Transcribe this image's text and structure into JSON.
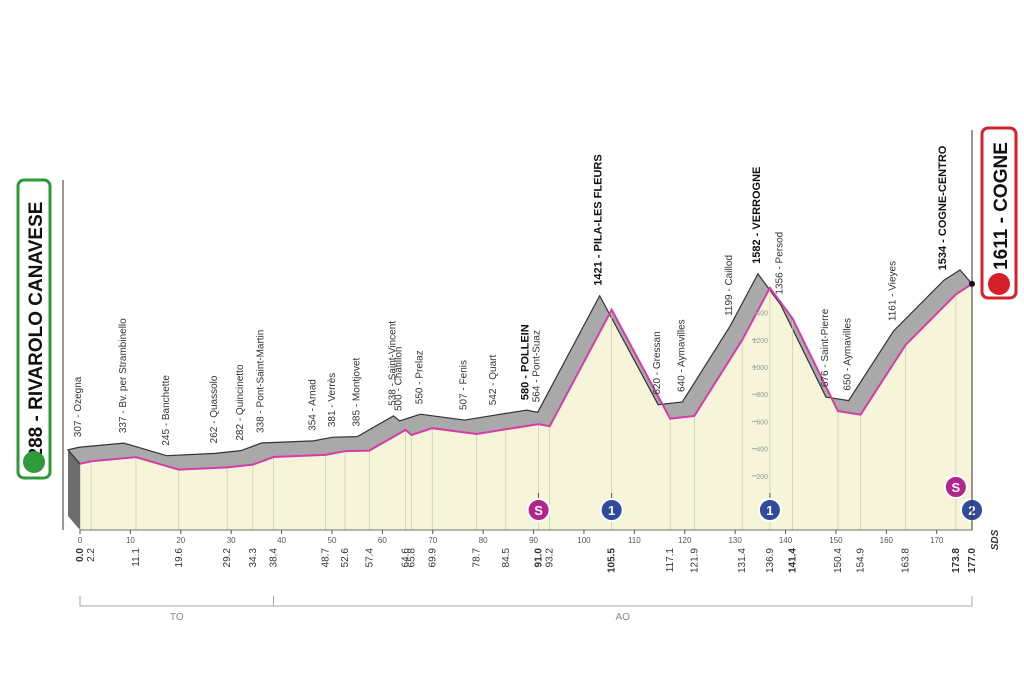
{
  "chart_data": {
    "type": "area",
    "start": {
      "label": "288 - RIVAROLO CANAVESE",
      "km": 0,
      "altitude": 288
    },
    "finish": {
      "label": "1611 - COGNE",
      "km": 177,
      "altitude": 1611
    },
    "waypoints": [
      {
        "label": "307 - Ozegna",
        "km": 2.2,
        "altitude": 307
      },
      {
        "label": "337 - Bv. per Strambinello",
        "km": 11.1,
        "altitude": 337
      },
      {
        "label": "245 - Banchette",
        "km": 19.6,
        "altitude": 245
      },
      {
        "label": "262 - Quassolo",
        "km": 29.2,
        "altitude": 262
      },
      {
        "label": "282 - Quincinetto",
        "km": 34.3,
        "altitude": 282
      },
      {
        "label": "338 - Pont-Saint-Martin",
        "km": 38.4,
        "altitude": 338
      },
      {
        "label": "354 - Arnad",
        "km": 48.7,
        "altitude": 354
      },
      {
        "label": "381 - Verrès",
        "km": 52.6,
        "altitude": 381
      },
      {
        "label": "385 - Montjovet",
        "km": 57.4,
        "altitude": 385
      },
      {
        "label": "538 - Saint-Vincent",
        "km": 64.6,
        "altitude": 538
      },
      {
        "label": "500 - Châtillon",
        "km": 65.8,
        "altitude": 500
      },
      {
        "label": "550 - Prelaz",
        "km": 69.9,
        "altitude": 550
      },
      {
        "label": "507 - Fenis",
        "km": 78.7,
        "altitude": 507
      },
      {
        "label": "542 - Quart",
        "km": 84.5,
        "altitude": 542
      },
      {
        "label": "580 - POLLEIN",
        "km": 91.0,
        "altitude": 580,
        "bold": true
      },
      {
        "label": "564 - Pont-Suaz",
        "km": 93.2,
        "altitude": 564
      },
      {
        "label": "1421 - PILA-LES FLEURS",
        "km": 105.5,
        "altitude": 1421,
        "bold": true
      },
      {
        "label": "620 - Gressan",
        "km": 117.1,
        "altitude": 620
      },
      {
        "label": "640 - Aymavilles",
        "km": 121.9,
        "altitude": 640
      },
      {
        "label": "1199 - Caillod",
        "km": 131.4,
        "altitude": 1199
      },
      {
        "label": "1582 - VERROGNE",
        "km": 136.9,
        "altitude": 1582,
        "bold": true
      },
      {
        "label": "1356 - Persod",
        "km": 141.4,
        "altitude": 1356
      },
      {
        "label": "676 - Saint-Pierre",
        "km": 150.4,
        "altitude": 676
      },
      {
        "label": "650 - Aymavilles",
        "km": 154.9,
        "altitude": 650
      },
      {
        "label": "1161 - Vieyes",
        "km": 163.8,
        "altitude": 1161
      },
      {
        "label": "1534 - COGNE-CENTRO",
        "km": 173.8,
        "altitude": 1534,
        "bold": true
      }
    ],
    "kmticks": [
      {
        "value": 0,
        "label": "0.0",
        "bold": true
      },
      {
        "value": 2.2,
        "label": "2.2"
      },
      {
        "value": 11.1,
        "label": "11.1"
      },
      {
        "value": 19.6,
        "label": "19.6"
      },
      {
        "value": 29.2,
        "label": "29.2"
      },
      {
        "value": 34.3,
        "label": "34.3"
      },
      {
        "value": 38.4,
        "label": "38.4"
      },
      {
        "value": 48.7,
        "label": "48.7"
      },
      {
        "value": 52.6,
        "label": "52.6"
      },
      {
        "value": 57.4,
        "label": "57.4"
      },
      {
        "value": 64.6,
        "label": "64.6"
      },
      {
        "value": 65.8,
        "label": "65.8"
      },
      {
        "value": 69.9,
        "label": "69.9"
      },
      {
        "value": 78.7,
        "label": "78.7"
      },
      {
        "value": 84.5,
        "label": "84.5"
      },
      {
        "value": 91.0,
        "label": "91.0",
        "bold": true
      },
      {
        "value": 93.2,
        "label": "93.2"
      },
      {
        "value": 105.5,
        "label": "105.5",
        "bold": true
      },
      {
        "value": 117.1,
        "label": "117.1"
      },
      {
        "value": 121.9,
        "label": "121.9"
      },
      {
        "value": 131.4,
        "label": "131.4"
      },
      {
        "value": 136.9,
        "label": "136.9"
      },
      {
        "value": 141.4,
        "label": "141.4",
        "bold": true
      },
      {
        "value": 150.4,
        "label": "150.4"
      },
      {
        "value": 154.9,
        "label": "154.9"
      },
      {
        "value": 163.8,
        "label": "163.8"
      },
      {
        "value": 173.8,
        "label": "173.8",
        "bold": true
      },
      {
        "value": 177.0,
        "label": "177.0",
        "bold": true
      }
    ],
    "xlim": [
      0,
      177
    ],
    "xticks": [
      0,
      10,
      20,
      30,
      40,
      50,
      60,
      70,
      80,
      90,
      100,
      110,
      120,
      130,
      140,
      150,
      160,
      170
    ],
    "ylim": [
      0,
      1750
    ],
    "yticks": [
      200,
      400,
      600,
      800,
      1000,
      1200,
      1400
    ],
    "markers": [
      {
        "symbol": "S",
        "km": 91.0,
        "color": "#b0278c"
      },
      {
        "symbol": "1",
        "km": 105.5,
        "color": "#2f4b9a"
      },
      {
        "symbol": "1",
        "km": 136.9,
        "color": "#2f4b9a"
      },
      {
        "symbol": "S",
        "km": 173.8,
        "color": "#b0278c"
      },
      {
        "symbol": "2",
        "km": 177.0,
        "color": "#2f4b9a"
      }
    ],
    "zones": [
      {
        "label": "TO",
        "from": 0,
        "to": 38.4
      },
      {
        "label": "AO",
        "from": 38.4,
        "to": 177
      }
    ],
    "brand": "SDS",
    "line_color": "#d63ca8",
    "face_color": "#f6f5da",
    "top_color": "#a9a9a9"
  }
}
